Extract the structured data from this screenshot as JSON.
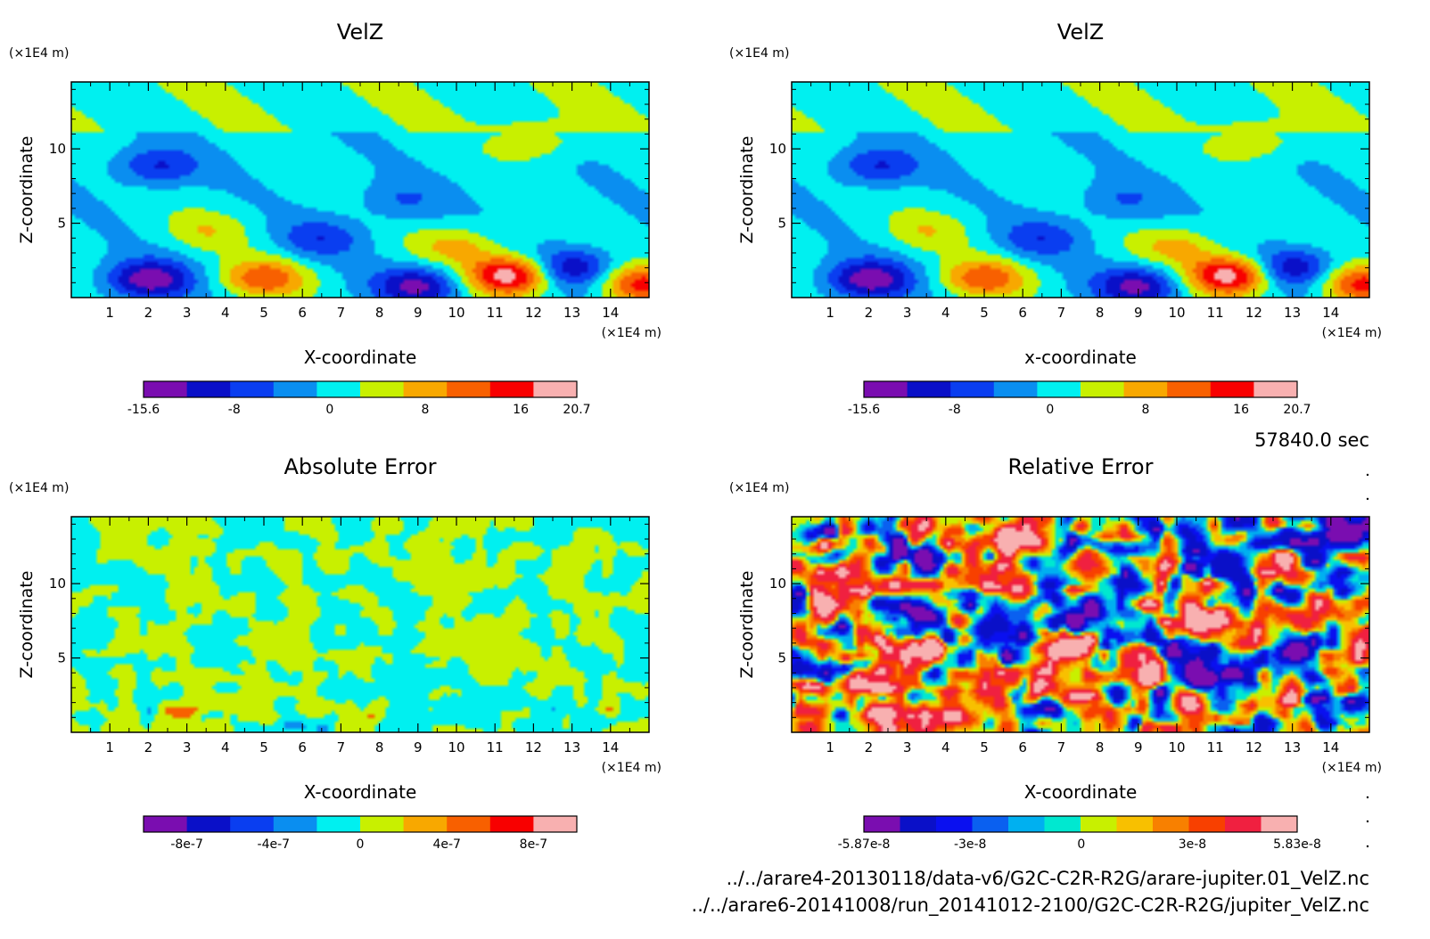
{
  "chart_data": [
    {
      "type": "heatmap",
      "title": "VelZ",
      "xlabel": "X-coordinate",
      "ylabel": "Z-coordinate",
      "x_unit": "(×1E4 m)",
      "y_unit": "(×1E4 m)",
      "xlim": [
        0,
        15
      ],
      "ylim": [
        0,
        14.5
      ],
      "xticks": [
        "1",
        "2",
        "3",
        "4",
        "5",
        "6",
        "7",
        "8",
        "9",
        "10",
        "11",
        "12",
        "13",
        "14"
      ],
      "yticks": [
        "5",
        "10"
      ],
      "colorbar": {
        "min": -15.6,
        "max": 20.7,
        "tick_labels": [
          "-15.6",
          "-8",
          "0",
          "8",
          "16",
          "20.7"
        ],
        "tick_values": [
          -15.6,
          -8,
          0,
          8,
          16,
          20.7
        ],
        "colors": [
          "#7a0db0",
          "#0a10c8",
          "#0a3ef0",
          "#0a8ef0",
          "#00f0f0",
          "#c8f000",
          "#f8a800",
          "#f86000",
          "#f80000",
          "#f8b0b0"
        ]
      },
      "features": [
        {
          "x": 2.0,
          "y": 1.2,
          "v": -15
        },
        {
          "x": 5.0,
          "y": 1.3,
          "v": 12
        },
        {
          "x": 9.0,
          "y": 0.8,
          "v": -13
        },
        {
          "x": 11.4,
          "y": 1.5,
          "v": 20
        },
        {
          "x": 13.0,
          "y": 2.0,
          "v": -12
        },
        {
          "x": 14.8,
          "y": 0.9,
          "v": 14
        },
        {
          "x": 2.2,
          "y": 8.8,
          "v": -9
        },
        {
          "x": 3.5,
          "y": 4.5,
          "v": 5
        },
        {
          "x": 6.5,
          "y": 4.0,
          "v": -7
        },
        {
          "x": 10.0,
          "y": 3.5,
          "v": 7
        },
        {
          "x": 8.5,
          "y": 6.5,
          "v": -5
        },
        {
          "x": 12.0,
          "y": 10.5,
          "v": 6
        }
      ]
    },
    {
      "type": "heatmap",
      "title": "VelZ",
      "xlabel": "x-coordinate",
      "ylabel": "Z-coordinate",
      "x_unit": "(×1E4 m)",
      "y_unit": "(×1E4 m)",
      "xlim": [
        0,
        15
      ],
      "ylim": [
        0,
        14.5
      ],
      "xticks": [
        "1",
        "2",
        "3",
        "4",
        "5",
        "6",
        "7",
        "8",
        "9",
        "10",
        "11",
        "12",
        "13",
        "14"
      ],
      "yticks": [
        "5",
        "10"
      ],
      "colorbar": {
        "min": -15.6,
        "max": 20.7,
        "tick_labels": [
          "-15.6",
          "-8",
          "0",
          "8",
          "16",
          "20.7"
        ],
        "tick_values": [
          -15.6,
          -8,
          0,
          8,
          16,
          20.7
        ],
        "colors": [
          "#7a0db0",
          "#0a10c8",
          "#0a3ef0",
          "#0a8ef0",
          "#00f0f0",
          "#c8f000",
          "#f8a800",
          "#f86000",
          "#f80000",
          "#f8b0b0"
        ]
      },
      "features": [
        {
          "x": 2.0,
          "y": 1.2,
          "v": -15
        },
        {
          "x": 5.0,
          "y": 1.3,
          "v": 12
        },
        {
          "x": 9.0,
          "y": 0.8,
          "v": -13
        },
        {
          "x": 11.4,
          "y": 1.5,
          "v": 20
        },
        {
          "x": 13.0,
          "y": 2.0,
          "v": -12
        },
        {
          "x": 14.8,
          "y": 0.9,
          "v": 14
        },
        {
          "x": 2.2,
          "y": 8.8,
          "v": -9
        },
        {
          "x": 3.5,
          "y": 4.5,
          "v": 5
        },
        {
          "x": 6.5,
          "y": 4.0,
          "v": -7
        },
        {
          "x": 10.0,
          "y": 3.5,
          "v": 7
        },
        {
          "x": 8.5,
          "y": 6.5,
          "v": -5
        },
        {
          "x": 12.0,
          "y": 10.5,
          "v": 6
        }
      ]
    },
    {
      "type": "heatmap",
      "title": "Absolute Error",
      "xlabel": "X-coordinate",
      "ylabel": "Z-coordinate",
      "x_unit": "(×1E4 m)",
      "y_unit": "(×1E4 m)",
      "xlim": [
        0,
        15
      ],
      "ylim": [
        0,
        14.5
      ],
      "xticks": [
        "1",
        "2",
        "3",
        "4",
        "5",
        "6",
        "7",
        "8",
        "9",
        "10",
        "11",
        "12",
        "13",
        "14"
      ],
      "yticks": [
        "5",
        "10"
      ],
      "colorbar": {
        "min": -1e-06,
        "max": 1e-06,
        "tick_labels": [
          "-8e-7",
          "-4e-7",
          "0",
          "4e-7",
          "8e-7"
        ],
        "tick_values": [
          -8e-07,
          -4e-07,
          0,
          4e-07,
          8e-07
        ],
        "colors": [
          "#7a0db0",
          "#0a10c8",
          "#0a3ef0",
          "#0a8ef0",
          "#00f0f0",
          "#c8f000",
          "#f8a800",
          "#f86000",
          "#f80000",
          "#f8b0b0"
        ]
      },
      "pattern": "noise-cyan-yellow"
    },
    {
      "type": "heatmap",
      "title": "Relative Error",
      "xlabel": "X-coordinate",
      "ylabel": "Z-coordinate",
      "x_unit": "(×1E4 m)",
      "y_unit": "(×1E4 m)",
      "xlim": [
        0,
        15
      ],
      "ylim": [
        0,
        14.5
      ],
      "xticks": [
        "1",
        "2",
        "3",
        "4",
        "5",
        "6",
        "7",
        "8",
        "9",
        "10",
        "11",
        "12",
        "13",
        "14"
      ],
      "yticks": [
        "5",
        "10"
      ],
      "colorbar": {
        "min": -5.87e-08,
        "max": 5.83e-08,
        "tick_labels": [
          "-5.87e-8",
          "-3e-8",
          "0",
          "3e-8",
          "5.83e-8"
        ],
        "tick_values": [
          -5.87e-08,
          -3e-08,
          0,
          3e-08,
          5.83e-08
        ],
        "colors": [
          "#7a0db0",
          "#0a10c8",
          "#0a10f0",
          "#0a60f0",
          "#00b0f0",
          "#00e8d0",
          "#c8f000",
          "#f8c000",
          "#f88000",
          "#f84000",
          "#f02040",
          "#f8b0b0"
        ]
      },
      "pattern": "noise-full"
    }
  ],
  "time_label": "57840.0 sec",
  "file_paths": [
    "../../arare4-20130118/data-v6/G2C-C2R-R2G/arare-jupiter.01_VelZ.nc",
    "../../arare6-20141008/run_20141012-2100/G2C-C2R-R2G/jupiter_VelZ.nc"
  ]
}
